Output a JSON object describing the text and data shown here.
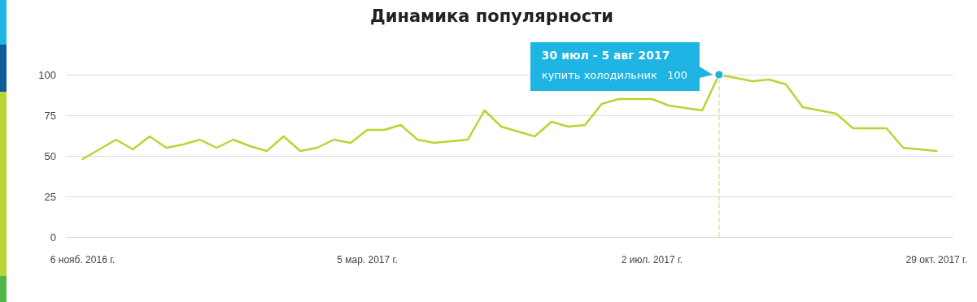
{
  "chart_data": {
    "type": "line",
    "title": "Динамика популярности",
    "x": [
      "2016-11-06",
      "2016-11-13",
      "2016-11-20",
      "2016-11-27",
      "2016-12-04",
      "2016-12-11",
      "2016-12-18",
      "2016-12-25",
      "2017-01-01",
      "2017-01-08",
      "2017-01-15",
      "2017-01-22",
      "2017-01-29",
      "2017-02-05",
      "2017-02-12",
      "2017-02-19",
      "2017-02-26",
      "2017-03-05",
      "2017-03-12",
      "2017-03-19",
      "2017-03-26",
      "2017-04-02",
      "2017-04-09",
      "2017-04-16",
      "2017-04-23",
      "2017-04-30",
      "2017-05-07",
      "2017-05-14",
      "2017-05-21",
      "2017-05-28",
      "2017-06-04",
      "2017-06-11",
      "2017-06-18",
      "2017-06-25",
      "2017-07-02",
      "2017-07-09",
      "2017-07-16",
      "2017-07-23",
      "2017-07-30",
      "2017-08-06",
      "2017-08-13",
      "2017-08-20",
      "2017-08-27",
      "2017-09-03",
      "2017-09-10",
      "2017-09-17",
      "2017-09-24",
      "2017-10-01",
      "2017-10-08",
      "2017-10-15",
      "2017-10-22",
      "2017-10-29"
    ],
    "series": [
      {
        "color": "#b8d435",
        "values": [
          48,
          54,
          60,
          54,
          62,
          55,
          57,
          60,
          55,
          60,
          56,
          53,
          62,
          53,
          55,
          60,
          58,
          66,
          66,
          69,
          60,
          58,
          59,
          60,
          78,
          68,
          65,
          62,
          71,
          68,
          69,
          82,
          85,
          85,
          85,
          81,
          null,
          78,
          100,
          98,
          96,
          97,
          94,
          80,
          78,
          76,
          67,
          67,
          67,
          55,
          54,
          53
        ]
      }
    ],
    "xlim": [
      "2016-10-30",
      "2017-11-05"
    ],
    "xticks": [
      {
        "value": "2016-11-06",
        "label": "6 нояб. 2016 г."
      },
      {
        "value": "2017-03-05",
        "label": "5 мар. 2017 г."
      },
      {
        "value": "2017-07-02",
        "label": "2 июл. 2017 г."
      },
      {
        "value": "2017-10-29",
        "label": "29 окт. 2017 г."
      }
    ],
    "ylim": [
      0,
      100
    ],
    "yticks": [
      0,
      25,
      50,
      75,
      100
    ],
    "grid": "y",
    "marker": "none",
    "line_style": "solid",
    "ref_lines": [
      {
        "axis": "x",
        "value": "2017-07-30",
        "label": null,
        "color": "#d9e8a0",
        "line_style": "dashed"
      }
    ],
    "annotations": [
      "30 июл - 5 авг 2017",
      "купить холодильник   100"
    ]
  }
}
